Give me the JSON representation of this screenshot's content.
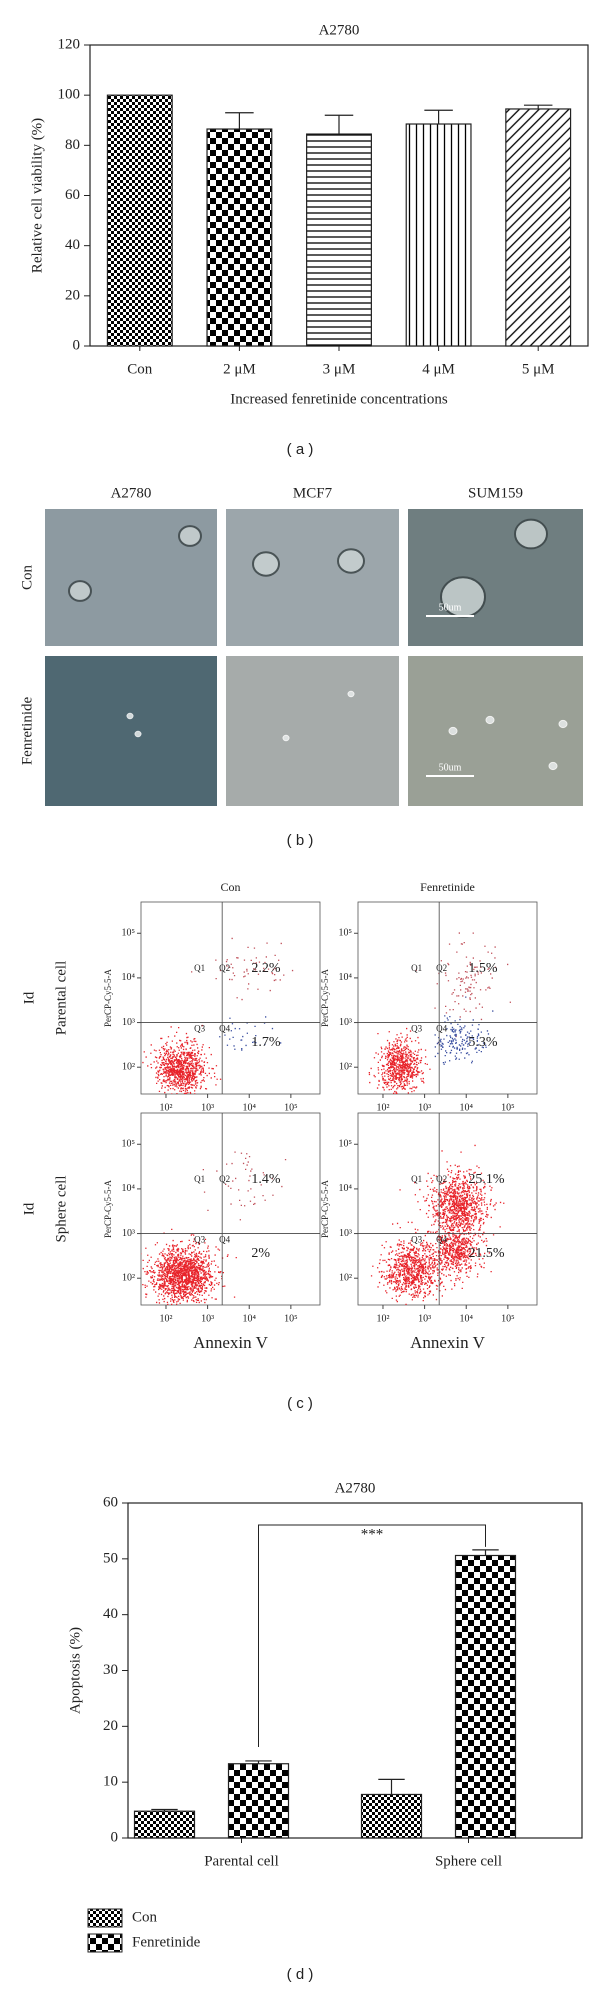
{
  "chart_data": [
    {
      "type": "bar",
      "title": "A2780",
      "panel_label": "( a )",
      "categories": [
        "Con",
        "2 μM",
        "3 μM",
        "4 μM",
        "5 μM"
      ],
      "values": [
        100,
        86.5,
        84.5,
        88.5,
        94.5
      ],
      "errors": [
        0,
        6.5,
        7.5,
        5.5,
        1.5
      ],
      "patterns": [
        "fine-checker",
        "checker",
        "horizontal",
        "vertical",
        "diagonal"
      ],
      "ylim": [
        0,
        120
      ],
      "yticks": [
        0,
        20,
        40,
        60,
        80,
        100,
        120
      ],
      "ylabel": "Relative cell viability (%)",
      "xlabel": "Increased fenretinide concentrations"
    },
    {
      "type": "grouped-bar",
      "title": "A2780",
      "panel_label": "( d )",
      "categories": [
        "Parental cell",
        "Sphere cell"
      ],
      "series": [
        {
          "name": "Con",
          "pattern": "fine-checker",
          "values": [
            4.8,
            7.8
          ],
          "errors": [
            0.3,
            2.7
          ]
        },
        {
          "name": "Fenretinide",
          "pattern": "checker",
          "values": [
            13.3,
            50.6
          ],
          "errors": [
            0.5,
            1.0
          ]
        }
      ],
      "ylim": [
        0,
        60
      ],
      "yticks": [
        0,
        10,
        20,
        30,
        40,
        50,
        60
      ],
      "ylabel": "Apoptosis (%)",
      "annotation": "***",
      "legend": "bottom-left"
    }
  ],
  "panel_b": {
    "panel_label": "( b )",
    "columns": [
      "A2780",
      "MCF7",
      "SUM159"
    ],
    "rows": [
      "Con",
      "Fenretinide"
    ],
    "scale_bars": [
      "50um",
      "50um"
    ]
  },
  "panel_c": {
    "panel_label": "( c )",
    "columns": [
      "Con",
      "Fenretinide"
    ],
    "rows": [
      "Parental cell",
      "Sphere cell"
    ],
    "row_axis": "Id",
    "y_axis": "PerCP-Cy5-5-A",
    "x_axis": "Annexin V",
    "ticks": [
      "10²",
      "10³",
      "10⁴",
      "10⁵"
    ],
    "quadrants": [
      "Q1",
      "Q2",
      "Q3",
      "Q4"
    ],
    "plots": [
      {
        "upper": "2.2%",
        "lower": "1.7%"
      },
      {
        "upper": "1.5%",
        "lower": "5.3%"
      },
      {
        "upper": "1.4%",
        "lower": "2%"
      },
      {
        "upper": "25.1%",
        "lower": "21.5%"
      }
    ]
  }
}
